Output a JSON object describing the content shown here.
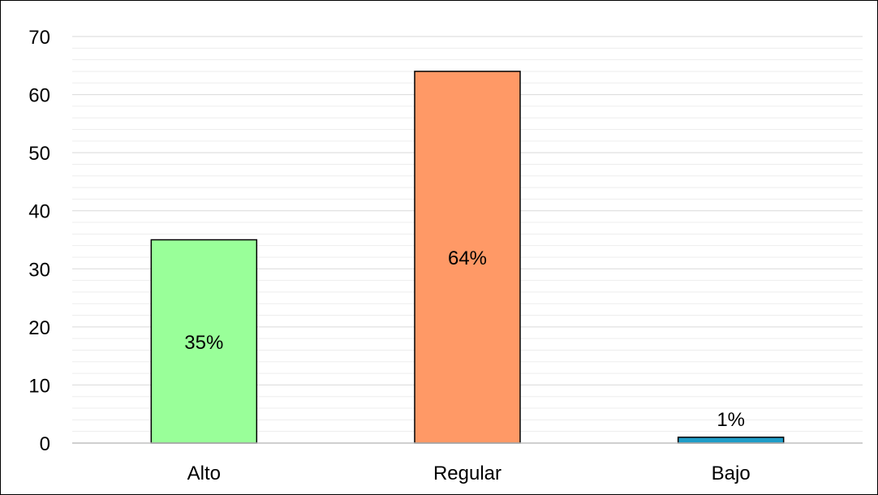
{
  "chart_data": {
    "type": "bar",
    "title": "",
    "xlabel": "",
    "ylabel": "",
    "categories": [
      "Alto",
      "Regular",
      "Bajo"
    ],
    "values": [
      35,
      64,
      1
    ],
    "data_labels": [
      "35%",
      "64%",
      "1%"
    ],
    "colors": [
      "#99FF99",
      "#FF9966",
      "#1E9DC8"
    ],
    "bar_outline_color": "#000000",
    "ylim": [
      0,
      70
    ],
    "yticks": [
      0,
      10,
      20,
      30,
      40,
      50,
      60,
      70
    ],
    "ytick_labels": [
      "0",
      "10",
      "20",
      "30",
      "40",
      "50",
      "60",
      "70"
    ],
    "grid": true,
    "minor_grid": true,
    "legend": "none"
  }
}
